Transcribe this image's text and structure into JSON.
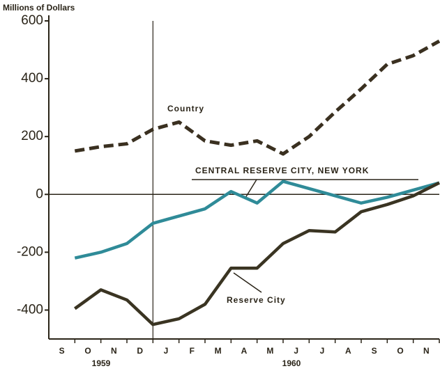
{
  "chart_data": {
    "type": "line",
    "y_label": "Millions of Dollars",
    "categories": [
      "S",
      "O",
      "N",
      "D",
      "J",
      "F",
      "M",
      "A",
      "M",
      "J",
      "J",
      "A",
      "S",
      "O",
      "N"
    ],
    "years": [
      "1959",
      "1960"
    ],
    "x": [
      1,
      2,
      3,
      4,
      5,
      6,
      7,
      8,
      9,
      10,
      11,
      12,
      13,
      14,
      15
    ],
    "xlim": [
      0,
      15
    ],
    "ylim": [
      -500,
      600
    ],
    "yticks": [
      -400,
      -200,
      0,
      200,
      400,
      600
    ],
    "divider_x": 4,
    "series": [
      {
        "name": "Country",
        "color": "#3a3020",
        "dashed": true,
        "values": [
          150,
          165,
          175,
          225,
          250,
          185,
          170,
          185,
          140,
          200,
          285,
          365,
          450,
          480,
          530
        ]
      },
      {
        "name": "CENTRAL RESERVE CITY, NEW YORK",
        "color": "#2f8b98",
        "values": [
          -220,
          -200,
          -170,
          -100,
          -75,
          -50,
          10,
          -30,
          45,
          20,
          -5,
          -30,
          -10,
          15,
          40
        ]
      },
      {
        "name": "Reserve City",
        "color": "#3a3422",
        "values": [
          -395,
          -330,
          -365,
          -450,
          -430,
          -380,
          -255,
          -255,
          -170,
          -125,
          -130,
          -60,
          -35,
          -5,
          40
        ]
      }
    ]
  }
}
